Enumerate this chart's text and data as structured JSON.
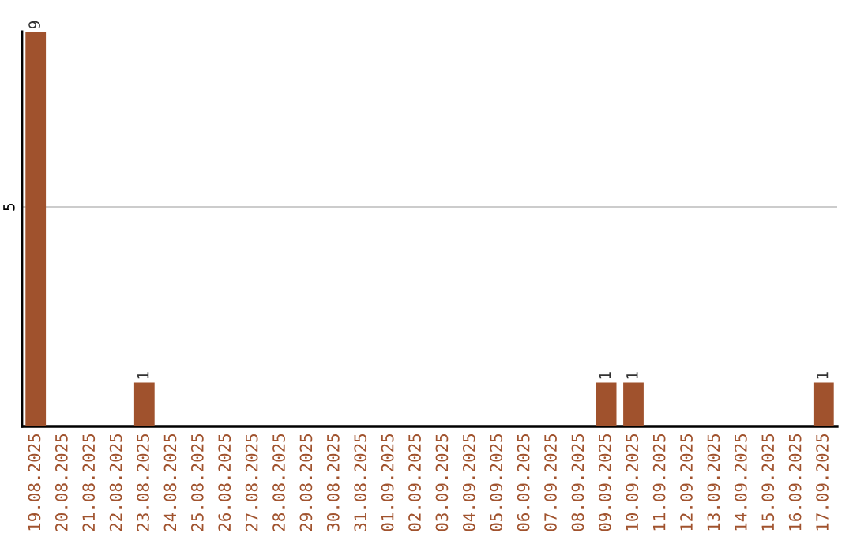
{
  "chart_data": {
    "type": "bar",
    "categories": [
      "19.08.2025",
      "20.08.2025",
      "21.08.2025",
      "22.08.2025",
      "23.08.2025",
      "24.08.2025",
      "25.08.2025",
      "26.08.2025",
      "27.08.2025",
      "28.08.2025",
      "29.08.2025",
      "30.08.2025",
      "31.08.2025",
      "01.09.2025",
      "02.09.2025",
      "03.09.2025",
      "04.09.2025",
      "05.09.2025",
      "06.09.2025",
      "07.09.2025",
      "08.09.2025",
      "09.09.2025",
      "10.09.2025",
      "11.09.2025",
      "12.09.2025",
      "13.09.2025",
      "14.09.2025",
      "15.09.2025",
      "16.09.2025",
      "17.09.2025"
    ],
    "values": [
      9,
      0,
      0,
      0,
      1,
      0,
      0,
      0,
      0,
      0,
      0,
      0,
      0,
      0,
      0,
      0,
      0,
      0,
      0,
      0,
      0,
      1,
      1,
      0,
      0,
      0,
      0,
      0,
      0,
      1
    ],
    "value_labels": [
      "9",
      null,
      null,
      null,
      "1",
      null,
      null,
      null,
      null,
      null,
      null,
      null,
      null,
      null,
      null,
      null,
      null,
      null,
      null,
      null,
      null,
      "1",
      "1",
      null,
      null,
      null,
      null,
      null,
      null,
      "1"
    ],
    "color": "#a0522d",
    "ylim": [
      0,
      9
    ],
    "yticks": [
      5
    ],
    "grid": "y",
    "legend": false
  }
}
